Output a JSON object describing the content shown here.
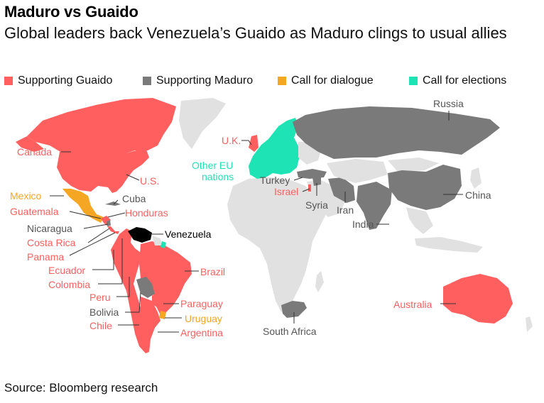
{
  "header": {
    "title": "Maduro vs Guaido",
    "subtitle": "Global leaders back Venezuela’s Guaido as Maduro clings to usual allies"
  },
  "legend": [
    {
      "label": "Supporting Guaido",
      "color": "#ff5f5f"
    },
    {
      "label": "Supporting Maduro",
      "color": "#7a7a7a"
    },
    {
      "label": "Call for dialogue",
      "color": "#f5a623"
    },
    {
      "label": "Call for elections",
      "color": "#1ee3b4"
    }
  ],
  "colors": {
    "guaido": "#ff5f5f",
    "maduro": "#7a7a7a",
    "dialogue": "#f5a623",
    "elections": "#1ee3b4",
    "neutral": "#e1e1e1",
    "venezuela": "#000000"
  },
  "labels": {
    "canada": "Canada",
    "us": "U.S.",
    "mexico": "Mexico",
    "cuba": "Cuba",
    "guatemala": "Guatemala",
    "honduras": "Honduras",
    "nicaragua": "Nicaragua",
    "costa_rica": "Costa Rica",
    "panama": "Panama",
    "venezuela": "Venezuela",
    "ecuador": "Ecuador",
    "colombia": "Colombia",
    "brazil": "Brazil",
    "peru": "Peru",
    "bolivia": "Bolivia",
    "paraguay": "Paraguay",
    "uruguay": "Uruguay",
    "chile": "Chile",
    "argentina": "Argentina",
    "uk": "U.K.",
    "other_eu_1": "Other EU",
    "other_eu_2": "nations",
    "turkey": "Turkey",
    "israel": "Israel",
    "syria": "Syria",
    "iran": "Iran",
    "russia": "Russia",
    "china": "China",
    "india": "India",
    "south_africa": "South Africa",
    "australia": "Australia"
  },
  "footer": {
    "source": "Source: Bloomberg research"
  }
}
